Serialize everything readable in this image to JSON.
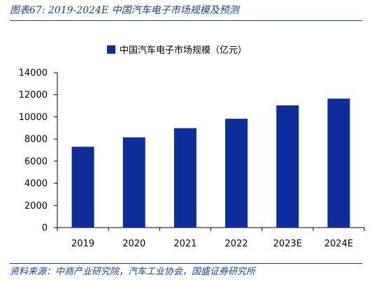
{
  "figure": {
    "title": "图表67:  2019-2024E 中国汽车电子市场规模及预测",
    "source": "资料来源：中商产业研究院，汽车工业协会，国盛证券研究所"
  },
  "chart_data": {
    "type": "bar",
    "categories": [
      "2019",
      "2020",
      "2021",
      "2022",
      "2023E",
      "2024E"
    ],
    "series": [
      {
        "name": "中国汽车电子市场规模（亿元）",
        "values": [
          7300,
          8150,
          8980,
          9830,
          11040,
          11650
        ],
        "color": "#0d2d9a"
      }
    ],
    "ylim": [
      0,
      14000
    ],
    "yticks": [
      "0",
      "2000",
      "4000",
      "6000",
      "8000",
      "10000",
      "12000",
      "14000"
    ],
    "legend_position": "top-center",
    "grid": false
  }
}
